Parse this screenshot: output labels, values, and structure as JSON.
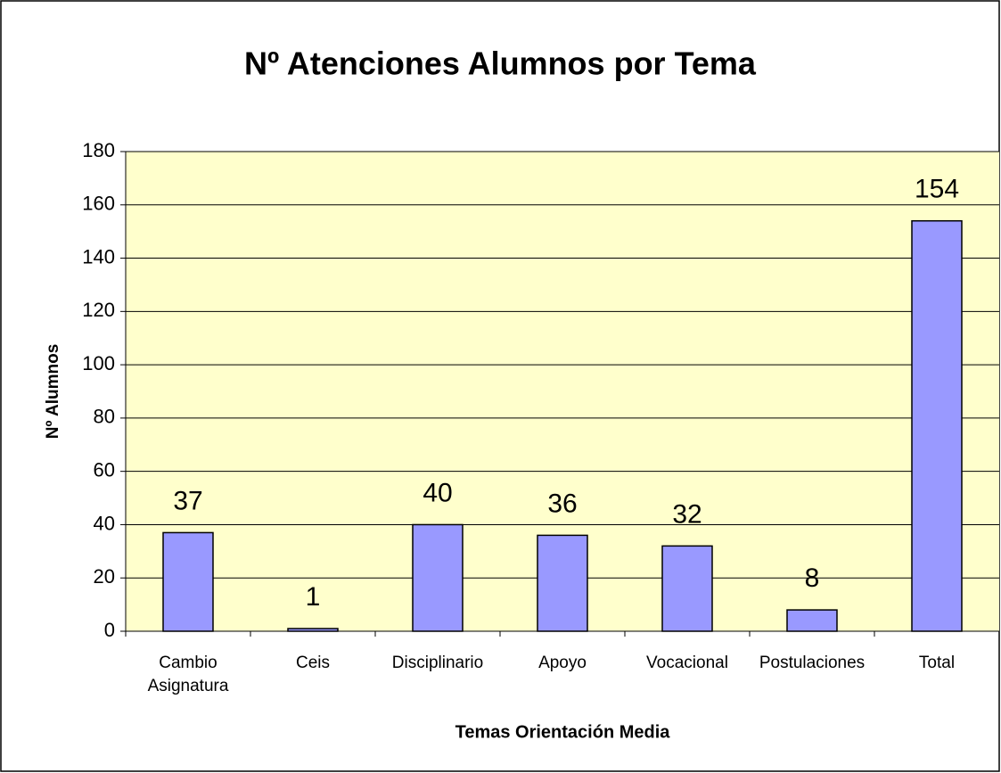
{
  "chart_data": {
    "type": "bar",
    "title": "Nº Atenciones Alumnos  por Tema",
    "x_label": "Temas Orientación Media",
    "y_label": "Nº Alumnos",
    "categories": [
      "Cambio Asignatura",
      "Ceis",
      "Disciplinario",
      "Apoyo",
      "Vocacional",
      "Postulaciones",
      "Total"
    ],
    "values": [
      37,
      1,
      40,
      36,
      32,
      8,
      154
    ],
    "color": "#9999ff",
    "ylim": [
      0,
      180
    ],
    "yticks": [
      0,
      20,
      40,
      60,
      80,
      100,
      120,
      140,
      160,
      180
    ],
    "grid": true
  }
}
